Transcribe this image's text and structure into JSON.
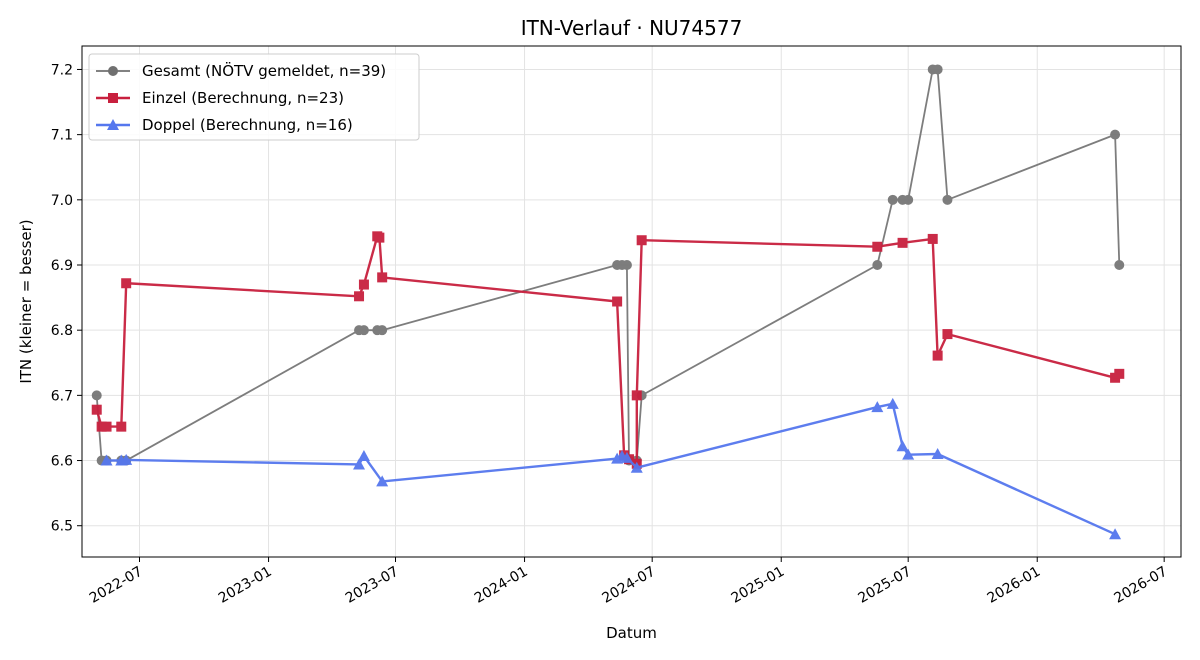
{
  "chart_data": {
    "type": "line",
    "title": "ITN-Verlauf · NU74577",
    "xlabel": "Datum",
    "ylabel": "ITN  (kleiner = besser)",
    "x_type": "date",
    "xlim": [
      "2022-04-10",
      "2026-07-25"
    ],
    "ylim": [
      6.452,
      7.236
    ],
    "grid": true,
    "legend_position": "top-left",
    "x_ticks": [
      "2022-07-01",
      "2023-01-01",
      "2023-07-01",
      "2024-01-01",
      "2024-07-01",
      "2025-01-01",
      "2025-07-01",
      "2026-01-01",
      "2026-07-01"
    ],
    "x_tick_labels": [
      "2022-07",
      "2023-01",
      "2023-07",
      "2024-01",
      "2024-07",
      "2025-01",
      "2025-07",
      "2026-01",
      "2026-07"
    ],
    "y_ticks": [
      6.5,
      6.6,
      6.7,
      6.8,
      6.9,
      7.0,
      7.1,
      7.2
    ],
    "y_tick_labels": [
      "6.5",
      "6.6",
      "6.7",
      "6.8",
      "6.9",
      "7.0",
      "7.1",
      "7.2"
    ],
    "series": [
      {
        "name": "Gesamt (NÖTV gemeldet, n=39)",
        "color": "#707070",
        "marker": "circle",
        "points": [
          {
            "x": "2022-05-01",
            "y": 6.7
          },
          {
            "x": "2022-05-08",
            "y": 6.6
          },
          {
            "x": "2022-05-15",
            "y": 6.6
          },
          {
            "x": "2022-06-05",
            "y": 6.6
          },
          {
            "x": "2022-06-12",
            "y": 6.6
          },
          {
            "x": "2023-05-10",
            "y": 6.8
          },
          {
            "x": "2023-05-17",
            "y": 6.8
          },
          {
            "x": "2023-06-05",
            "y": 6.8
          },
          {
            "x": "2023-06-12",
            "y": 6.8
          },
          {
            "x": "2024-05-12",
            "y": 6.9
          },
          {
            "x": "2024-05-19",
            "y": 6.9
          },
          {
            "x": "2024-05-26",
            "y": 6.9
          },
          {
            "x": "2024-05-29",
            "y": 6.6
          },
          {
            "x": "2024-06-09",
            "y": 6.6
          },
          {
            "x": "2024-06-16",
            "y": 6.7
          },
          {
            "x": "2025-05-18",
            "y": 6.9
          },
          {
            "x": "2025-06-09",
            "y": 7.0
          },
          {
            "x": "2025-06-23",
            "y": 7.0
          },
          {
            "x": "2025-07-01",
            "y": 7.0
          },
          {
            "x": "2025-08-05",
            "y": 7.2
          },
          {
            "x": "2025-08-12",
            "y": 7.2
          },
          {
            "x": "2025-08-26",
            "y": 7.0
          },
          {
            "x": "2026-04-22",
            "y": 7.1
          },
          {
            "x": "2026-04-28",
            "y": 6.9
          }
        ]
      },
      {
        "name": "Einzel (Berechnung, n=23)",
        "color": "#c8203e",
        "marker": "square",
        "points": [
          {
            "x": "2022-05-01",
            "y": 6.678
          },
          {
            "x": "2022-05-08",
            "y": 6.652
          },
          {
            "x": "2022-05-15",
            "y": 6.652
          },
          {
            "x": "2022-06-05",
            "y": 6.652
          },
          {
            "x": "2022-06-12",
            "y": 6.872
          },
          {
            "x": "2023-05-10",
            "y": 6.852
          },
          {
            "x": "2023-05-17",
            "y": 6.87
          },
          {
            "x": "2023-06-05",
            "y": 6.944
          },
          {
            "x": "2023-06-08",
            "y": 6.942
          },
          {
            "x": "2023-06-12",
            "y": 6.881
          },
          {
            "x": "2024-05-12",
            "y": 6.844
          },
          {
            "x": "2024-05-22",
            "y": 6.608
          },
          {
            "x": "2024-05-29",
            "y": 6.602
          },
          {
            "x": "2024-06-09",
            "y": 6.595
          },
          {
            "x": "2024-06-09",
            "y": 6.7
          },
          {
            "x": "2024-06-16",
            "y": 6.938
          },
          {
            "x": "2025-05-18",
            "y": 6.928
          },
          {
            "x": "2025-06-23",
            "y": 6.934
          },
          {
            "x": "2025-08-05",
            "y": 6.94
          },
          {
            "x": "2025-08-12",
            "y": 6.761
          },
          {
            "x": "2025-08-26",
            "y": 6.794
          },
          {
            "x": "2026-04-22",
            "y": 6.727
          },
          {
            "x": "2026-04-28",
            "y": 6.733
          }
        ]
      },
      {
        "name": "Doppel (Berechnung, n=16)",
        "color": "#5577ee",
        "marker": "triangle",
        "points": [
          {
            "x": "2022-05-15",
            "y": 6.6
          },
          {
            "x": "2022-06-05",
            "y": 6.6
          },
          {
            "x": "2022-06-12",
            "y": 6.601
          },
          {
            "x": "2023-05-10",
            "y": 6.594
          },
          {
            "x": "2023-05-17",
            "y": 6.607
          },
          {
            "x": "2023-06-12",
            "y": 6.568
          },
          {
            "x": "2024-05-12",
            "y": 6.603
          },
          {
            "x": "2024-05-19",
            "y": 6.607
          },
          {
            "x": "2024-05-26",
            "y": 6.604
          },
          {
            "x": "2024-06-09",
            "y": 6.589
          },
          {
            "x": "2025-05-18",
            "y": 6.682
          },
          {
            "x": "2025-06-09",
            "y": 6.687
          },
          {
            "x": "2025-06-23",
            "y": 6.622
          },
          {
            "x": "2025-07-01",
            "y": 6.609
          },
          {
            "x": "2025-08-12",
            "y": 6.61
          },
          {
            "x": "2026-04-22",
            "y": 6.487
          }
        ]
      }
    ]
  }
}
